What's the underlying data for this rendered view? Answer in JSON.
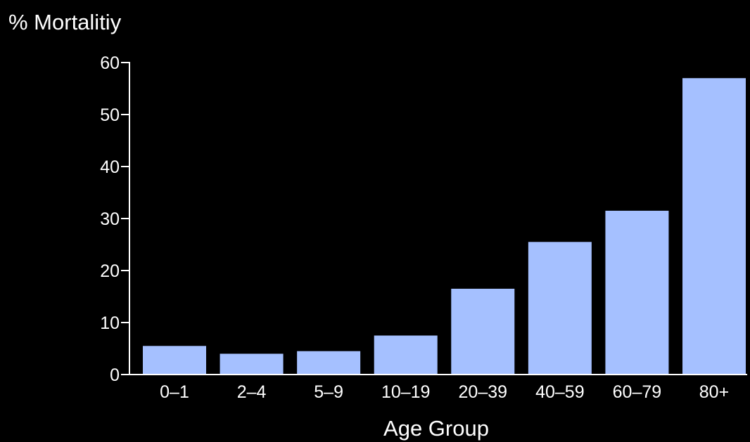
{
  "chart_data": {
    "type": "bar",
    "title": "",
    "ylabel": "% Mortalitiy",
    "xlabel": "Age Group",
    "categories": [
      "0–1",
      "2–4",
      "5–9",
      "10–19",
      "20–39",
      "40–59",
      "60–79",
      "80+"
    ],
    "values": [
      5.5,
      4,
      4.5,
      7.5,
      16.5,
      25.5,
      31.5,
      57
    ],
    "ylim": [
      0,
      60
    ],
    "yticks": [
      0,
      10,
      20,
      30,
      40,
      50,
      60
    ],
    "grid": false,
    "legend": "none",
    "colors": {
      "background": "#000000",
      "bar": "#a5c0ff",
      "axis": "#ffffff",
      "text": "#ffffff"
    }
  }
}
